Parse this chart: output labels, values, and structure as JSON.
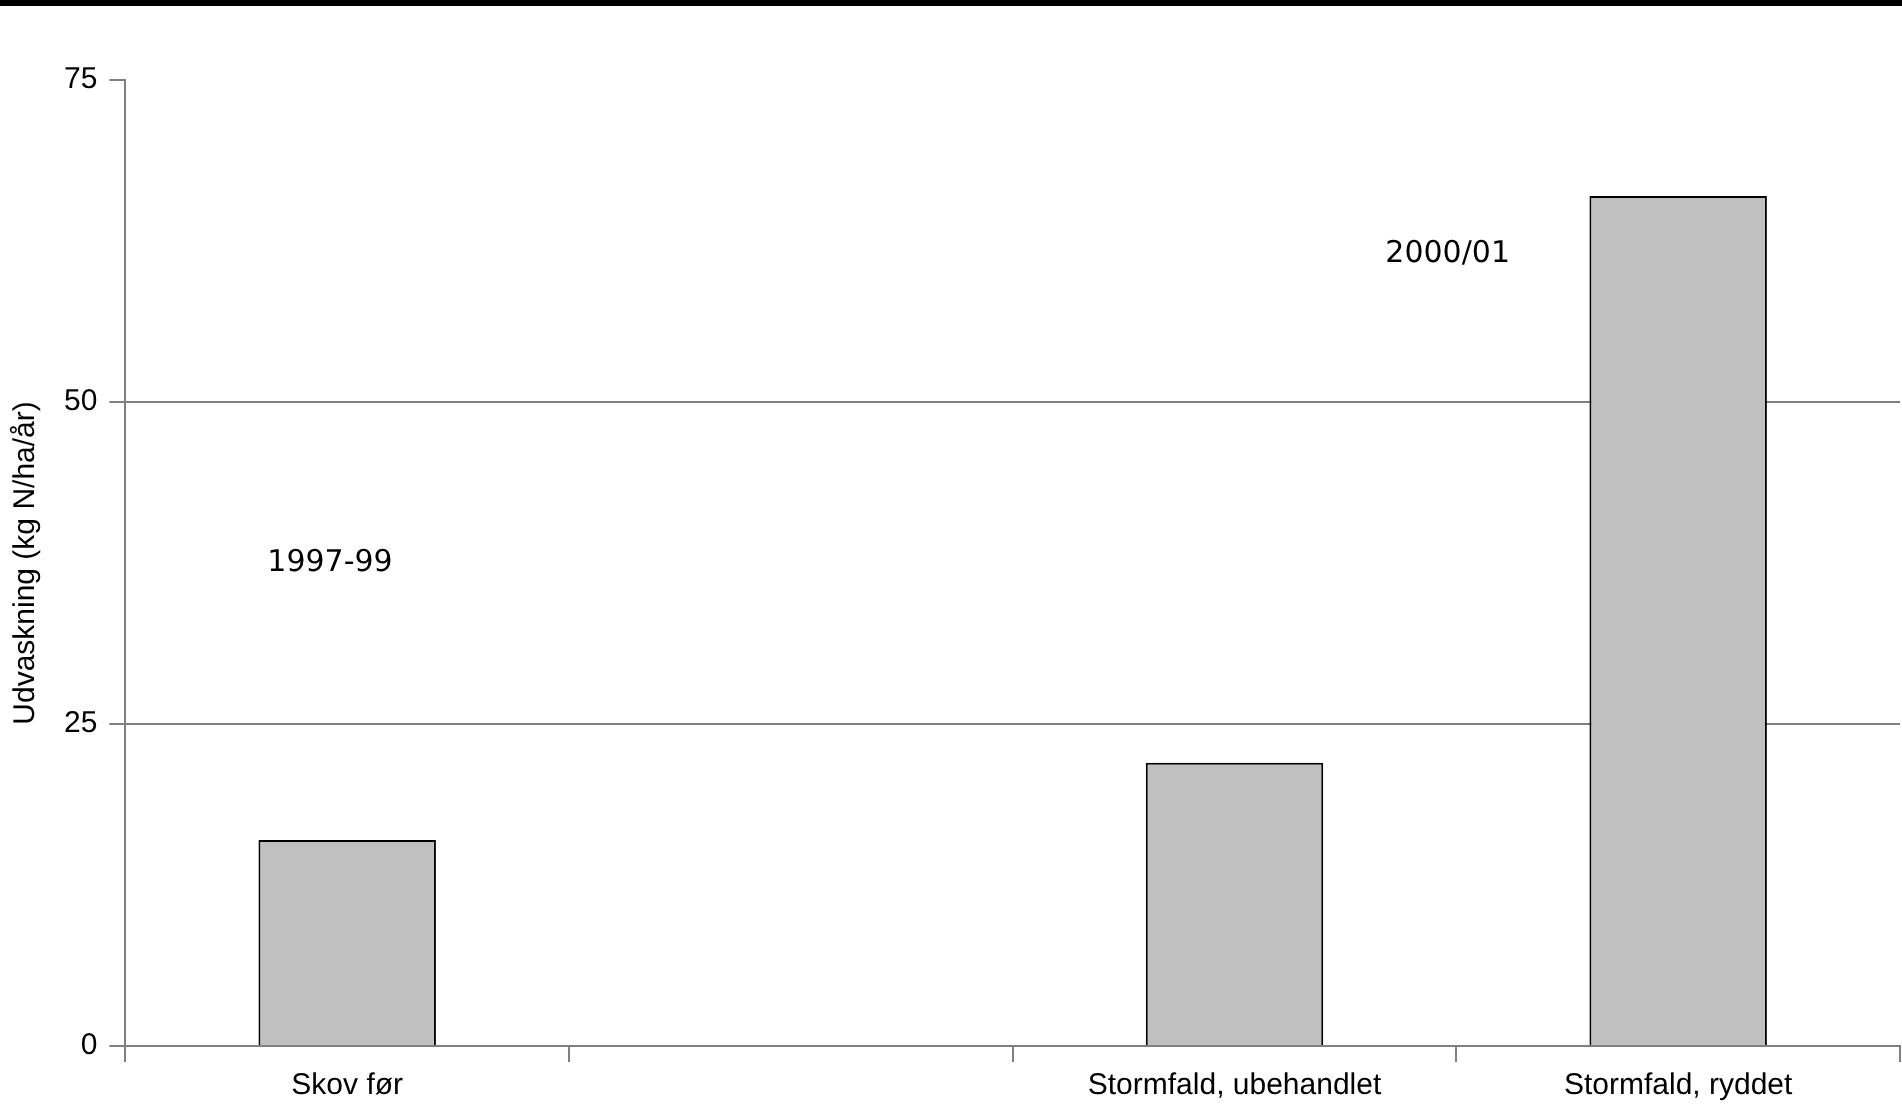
{
  "chart_data": {
    "type": "bar",
    "ylabel": "Udvaskning (kg N/ha/år)",
    "categories": [
      "Skov før",
      null,
      "Stormfald, ubehandlet",
      "Stormfald, ryddet"
    ],
    "values": [
      16,
      null,
      22,
      66
    ],
    "color": "#c0c0c0",
    "ylim": [
      0,
      75
    ],
    "yticks": [
      0,
      25,
      50,
      75
    ],
    "grid": "y",
    "legend": false,
    "annotations": [
      "1997-99",
      "2000/01"
    ]
  }
}
